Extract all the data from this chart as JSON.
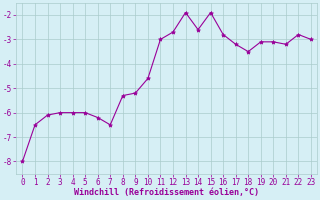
{
  "x": [
    0,
    1,
    2,
    3,
    4,
    5,
    6,
    7,
    8,
    9,
    10,
    11,
    12,
    13,
    14,
    15,
    16,
    17,
    18,
    19,
    20,
    21,
    22,
    23
  ],
  "y": [
    -8.0,
    -6.5,
    -6.1,
    -6.0,
    -6.0,
    -6.0,
    -6.2,
    -6.5,
    -5.3,
    -5.2,
    -4.6,
    -3.0,
    -2.7,
    -1.9,
    -2.6,
    -1.9,
    -2.8,
    -3.2,
    -3.5,
    -3.1,
    -3.1,
    -3.2,
    -2.8,
    -3.0
  ],
  "line_color": "#990099",
  "marker": "*",
  "marker_size": 3,
  "bg_color": "#d6eff5",
  "grid_color": "#aacccc",
  "xlabel": "Windchill (Refroidissement éolien,°C)",
  "xlabel_color": "#990099",
  "xlabel_fontsize": 6.0,
  "tick_fontsize": 5.5,
  "tick_color": "#990099",
  "ylim": [
    -8.5,
    -1.5
  ],
  "yticks": [
    -8,
    -7,
    -6,
    -5,
    -4,
    -3,
    -2
  ],
  "xlim": [
    -0.5,
    23.5
  ],
  "linewidth": 0.8
}
